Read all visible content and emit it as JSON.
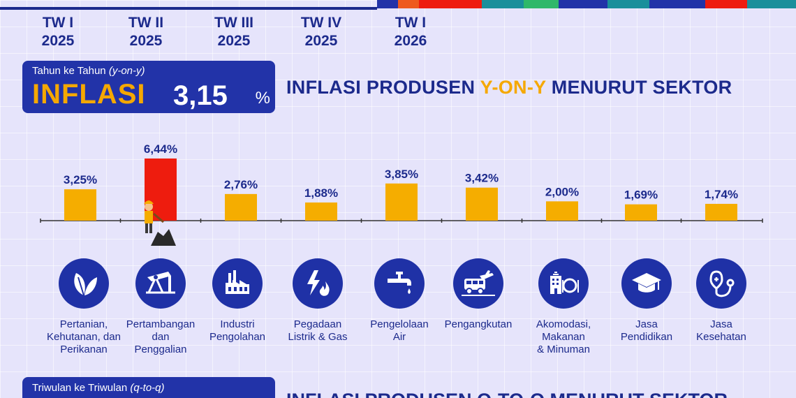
{
  "periods": [
    {
      "q": "TW I",
      "y": "2025"
    },
    {
      "q": "TW II",
      "y": "2025"
    },
    {
      "q": "TW III",
      "y": "2025"
    },
    {
      "q": "TW IV",
      "y": "2025"
    },
    {
      "q": "TW I",
      "y": "2026"
    }
  ],
  "yoy_box": {
    "label": "Tahun ke Tahun",
    "label_italic": "(y-on-y)",
    "big_label": "INFLASI",
    "value": "3,15",
    "unit": "%"
  },
  "title": {
    "part1": "INFLASI PRODUSEN ",
    "highlight": "Y-ON-Y",
    "part2": " MENURUT SEKTOR"
  },
  "chart_data": {
    "type": "bar",
    "title": "INFLASI PRODUSEN Y-ON-Y MENURUT SEKTOR",
    "categories": [
      "Pertanian, Kehutanan, dan Perikanan",
      "Pertambangan dan Penggalian",
      "Industri Pengolahan",
      "Pegadaan Listrik & Gas",
      "Pengelolaan Air",
      "Pengangkutan",
      "Akomodasi, Makanan & Minuman",
      "Jasa Pendidikan",
      "Jasa Kesehatan"
    ],
    "values": [
      3.25,
      6.44,
      2.76,
      1.88,
      3.85,
      3.42,
      2.0,
      1.69,
      1.74
    ],
    "value_labels": [
      "3,25%",
      "6,44%",
      "2,76%",
      "1,88%",
      "3,85%",
      "3,42%",
      "2,00%",
      "1,69%",
      "1,74%"
    ],
    "highlight_index": 1,
    "colors": {
      "bar": "#f5ad00",
      "highlight": "#ee1c0e",
      "axis": "#333333",
      "label": "#1c2a8c"
    },
    "ylim": [
      0,
      7
    ]
  },
  "sectors": [
    {
      "label": "Pertanian,\nKehutanan, dan\nPerikanan",
      "icon": "leaf-icon"
    },
    {
      "label": "Pertambangan\ndan\nPenggalian",
      "icon": "oil-pump-icon"
    },
    {
      "label": "Industri\nPengolahan",
      "icon": "factory-icon"
    },
    {
      "label": "Pegadaan\nListrik & Gas",
      "icon": "lightning-flame-icon"
    },
    {
      "label": "Pengelolaan\nAir",
      "icon": "water-tap-icon"
    },
    {
      "label": "Pengangkutan",
      "icon": "transport-icon"
    },
    {
      "label": "Akomodasi,\nMakanan\n& Minuman",
      "icon": "hotel-dining-icon"
    },
    {
      "label": "Jasa\nPendidikan",
      "icon": "graduation-cap-icon"
    },
    {
      "label": "Jasa\nKesehatan",
      "icon": "stethoscope-icon"
    }
  ],
  "qoq_box": {
    "label": "Triwulan ke Triwulan",
    "label_italic": "(q-to-q)"
  },
  "bottom_title": "INFLASI PRODUSEN Q-TO-Q MENURUT SEKTOR"
}
